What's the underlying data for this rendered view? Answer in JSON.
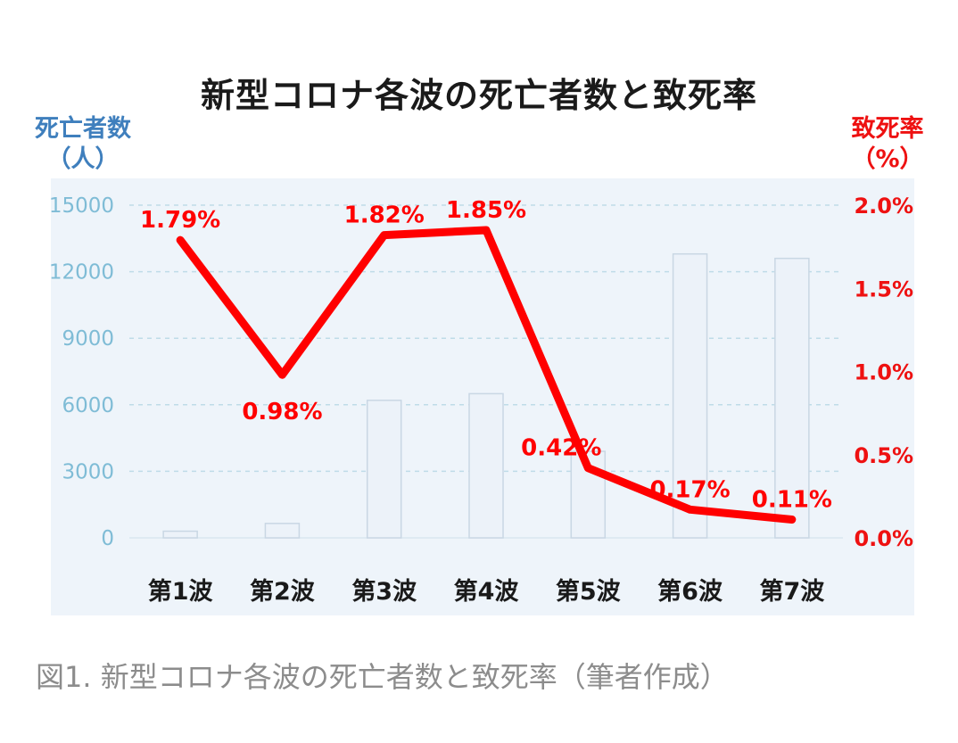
{
  "chart_data": {
    "type": "bar+line",
    "title": "新型コロナ各波の死亡者数と致死率",
    "categories": [
      "第1波",
      "第2波",
      "第3波",
      "第4波",
      "第5波",
      "第6波",
      "第7波"
    ],
    "left_axis": {
      "label_line1": "死亡者数",
      "label_line2": "（人）",
      "ticks": [
        "15000",
        "12000",
        "9000",
        "6000",
        "3000",
        "0"
      ],
      "range": [
        0,
        15000
      ],
      "color": "#7fbcd6"
    },
    "right_axis": {
      "label_line1": "致死率",
      "label_line2": "（%）",
      "ticks": [
        "2.0%",
        "1.5%",
        "1.0%",
        "0.5%",
        "0.0%"
      ],
      "range": [
        0,
        2.0
      ],
      "color": "#ee1111"
    },
    "series": [
      {
        "type": "bar",
        "axis": "left",
        "values": [
          300,
          650,
          6200,
          6500,
          3900,
          12800,
          12600
        ],
        "color": "#ecf2f9"
      },
      {
        "type": "line",
        "axis": "right",
        "values": [
          1.79,
          0.98,
          1.82,
          1.85,
          0.42,
          0.17,
          0.11
        ],
        "labels": [
          "1.79%",
          "0.98%",
          "1.82%",
          "1.85%",
          "0.42%",
          "0.17%",
          "0.11%"
        ],
        "color": "#ff0000"
      }
    ],
    "grid": true,
    "background": "#eef4fa"
  },
  "caption": "図1. 新型コロナ各波の死亡者数と致死率（筆者作成）"
}
